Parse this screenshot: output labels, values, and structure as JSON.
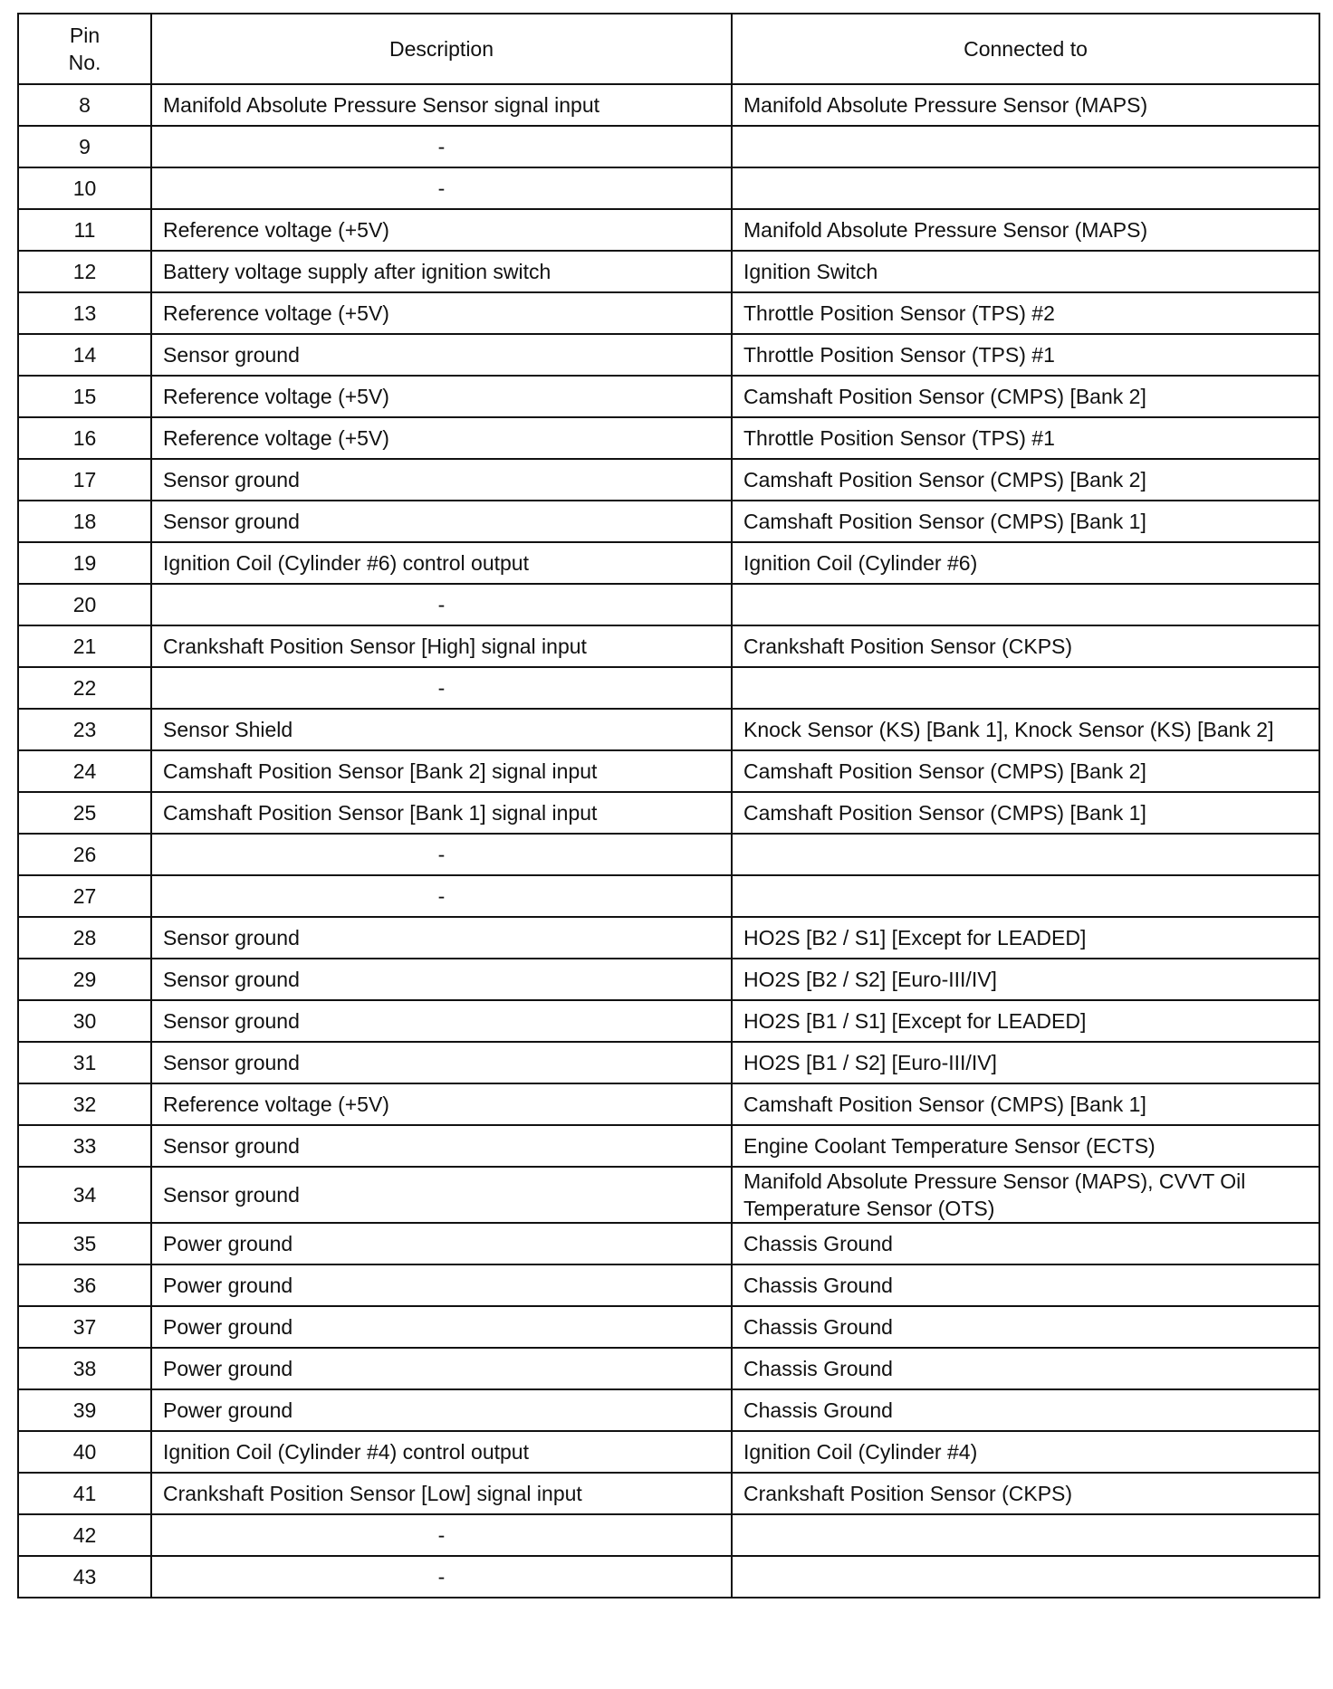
{
  "headers": {
    "pin": "Pin\nNo.",
    "description": "Description",
    "connected": "Connected to"
  },
  "rows": [
    {
      "pin": "8",
      "description": "Manifold Absolute Pressure Sensor signal input",
      "connected": "Manifold Absolute Pressure Sensor (MAPS)"
    },
    {
      "pin": "9",
      "description": "-",
      "connected": ""
    },
    {
      "pin": "10",
      "description": "-",
      "connected": ""
    },
    {
      "pin": "11",
      "description": "Reference voltage (+5V)",
      "connected": "Manifold Absolute Pressure Sensor (MAPS)"
    },
    {
      "pin": "12",
      "description": "Battery voltage supply after ignition switch",
      "connected": "Ignition Switch"
    },
    {
      "pin": "13",
      "description": "Reference voltage (+5V)",
      "connected": "Throttle Position Sensor (TPS) #2"
    },
    {
      "pin": "14",
      "description": "Sensor ground",
      "connected": "Throttle Position Sensor (TPS) #1"
    },
    {
      "pin": "15",
      "description": "Reference voltage (+5V)",
      "connected": "Camshaft Position Sensor (CMPS) [Bank 2]"
    },
    {
      "pin": "16",
      "description": "Reference voltage (+5V)",
      "connected": "Throttle Position Sensor (TPS) #1"
    },
    {
      "pin": "17",
      "description": "Sensor ground",
      "connected": "Camshaft Position Sensor (CMPS) [Bank 2]"
    },
    {
      "pin": "18",
      "description": "Sensor ground",
      "connected": "Camshaft Position Sensor (CMPS) [Bank 1]"
    },
    {
      "pin": "19",
      "description": "Ignition Coil (Cylinder #6) control output",
      "connected": "Ignition Coil (Cylinder #6)"
    },
    {
      "pin": "20",
      "description": "-",
      "connected": ""
    },
    {
      "pin": "21",
      "description": "Crankshaft Position Sensor [High] signal input",
      "connected": "Crankshaft Position Sensor (CKPS)"
    },
    {
      "pin": "22",
      "description": "-",
      "connected": ""
    },
    {
      "pin": "23",
      "description": "Sensor Shield",
      "connected": "Knock Sensor (KS) [Bank 1], Knock Sensor (KS) [Bank 2]"
    },
    {
      "pin": "24",
      "description": "Camshaft Position Sensor [Bank 2] signal input",
      "connected": "Camshaft Position Sensor (CMPS) [Bank 2]"
    },
    {
      "pin": "25",
      "description": "Camshaft Position Sensor [Bank 1] signal input",
      "connected": "Camshaft Position Sensor (CMPS) [Bank 1]"
    },
    {
      "pin": "26",
      "description": "-",
      "connected": ""
    },
    {
      "pin": "27",
      "description": "-",
      "connected": ""
    },
    {
      "pin": "28",
      "description": "Sensor ground",
      "connected": "HO2S [B2 / S1] [Except for LEADED]"
    },
    {
      "pin": "29",
      "description": "Sensor ground",
      "connected": "HO2S [B2 / S2] [Euro-III/IV]"
    },
    {
      "pin": "30",
      "description": "Sensor ground",
      "connected": "HO2S [B1 / S1] [Except for LEADED]"
    },
    {
      "pin": "31",
      "description": "Sensor ground",
      "connected": "HO2S [B1 / S2] [Euro-III/IV]"
    },
    {
      "pin": "32",
      "description": "Reference voltage (+5V)",
      "connected": "Camshaft Position Sensor (CMPS) [Bank 1]"
    },
    {
      "pin": "33",
      "description": "Sensor ground",
      "connected": "Engine Coolant Temperature Sensor (ECTS)"
    },
    {
      "pin": "34",
      "description": "Sensor ground",
      "connected": "Manifold Absolute Pressure Sensor (MAPS), CVVT Oil Temperature Sensor (OTS)"
    },
    {
      "pin": "35",
      "description": "Power ground",
      "connected": "Chassis Ground"
    },
    {
      "pin": "36",
      "description": "Power ground",
      "connected": "Chassis Ground"
    },
    {
      "pin": "37",
      "description": "Power ground",
      "connected": "Chassis Ground"
    },
    {
      "pin": "38",
      "description": "Power ground",
      "connected": "Chassis Ground"
    },
    {
      "pin": "39",
      "description": "Power ground",
      "connected": "Chassis Ground"
    },
    {
      "pin": "40",
      "description": "Ignition Coil (Cylinder #4) control output",
      "connected": "Ignition Coil (Cylinder #4)"
    },
    {
      "pin": "41",
      "description": "Crankshaft Position Sensor [Low] signal input",
      "connected": "Crankshaft Position Sensor (CKPS)"
    },
    {
      "pin": "42",
      "description": "-",
      "connected": ""
    },
    {
      "pin": "43",
      "description": "-",
      "connected": ""
    }
  ]
}
